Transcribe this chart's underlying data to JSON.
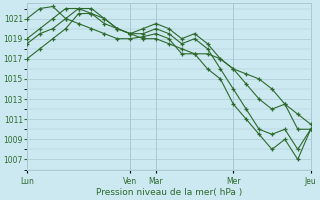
{
  "background_color": "#cce8f0",
  "grid_color": "#aac8d4",
  "line_color": "#2d6a2d",
  "yticks": [
    1007,
    1009,
    1011,
    1013,
    1015,
    1017,
    1019,
    1021
  ],
  "ylim": [
    1006.0,
    1022.5
  ],
  "day_labels": [
    "Lun",
    "Ven",
    "Mar",
    "Mer",
    "Jeu"
  ],
  "day_positions": [
    0,
    8,
    10,
    16,
    22
  ],
  "xlabel": "Pression niveau de la mer( hPa )",
  "series": [
    {
      "x": [
        0,
        1,
        2,
        3,
        4,
        5,
        6,
        7,
        8,
        9,
        10,
        11,
        12,
        13,
        14,
        15,
        16,
        17,
        18,
        19,
        20,
        21,
        22
      ],
      "y": [
        1021,
        1022,
        1022.2,
        1021,
        1020.5,
        1020,
        1019.5,
        1019,
        1019,
        1019.2,
        1019.5,
        1019,
        1017.5,
        1017.5,
        1017.5,
        1017,
        1016,
        1015.5,
        1015,
        1014,
        1012.5,
        1011.5,
        1010.5
      ]
    },
    {
      "x": [
        0,
        1,
        2,
        3,
        4,
        5,
        6,
        7,
        8,
        9,
        10,
        11,
        12,
        13,
        14,
        15,
        16,
        17,
        18,
        19,
        20,
        21,
        22
      ],
      "y": [
        1019,
        1020,
        1021,
        1022,
        1022,
        1021.5,
        1021,
        1020,
        1019.5,
        1020,
        1020.5,
        1020,
        1019,
        1019.5,
        1018.5,
        1017,
        1016,
        1014.5,
        1013,
        1012,
        1012.5,
        1010,
        1010
      ]
    },
    {
      "x": [
        0,
        1,
        2,
        3,
        4,
        5,
        6,
        7,
        8,
        9,
        10,
        11,
        12,
        13,
        14,
        15,
        16,
        17,
        18,
        19,
        20,
        21,
        22
      ],
      "y": [
        1018.5,
        1019.5,
        1020,
        1021,
        1022,
        1022,
        1021,
        1020,
        1019.5,
        1019.5,
        1020,
        1019.5,
        1018.5,
        1019,
        1018,
        1016,
        1014,
        1012,
        1010,
        1009.5,
        1010,
        1008,
        1010
      ]
    },
    {
      "x": [
        0,
        1,
        2,
        3,
        4,
        5,
        6,
        7,
        8,
        9,
        10,
        11,
        12,
        13,
        14,
        15,
        16,
        17,
        18,
        19,
        20,
        21,
        22
      ],
      "y": [
        1017,
        1018,
        1019,
        1020,
        1021.5,
        1021.5,
        1020.5,
        1020,
        1019.5,
        1019,
        1019,
        1018.5,
        1018,
        1017.5,
        1016,
        1015,
        1012.5,
        1011,
        1009.5,
        1008,
        1009,
        1007,
        1010
      ]
    }
  ],
  "vlines": [
    0,
    8,
    10,
    16,
    22
  ]
}
